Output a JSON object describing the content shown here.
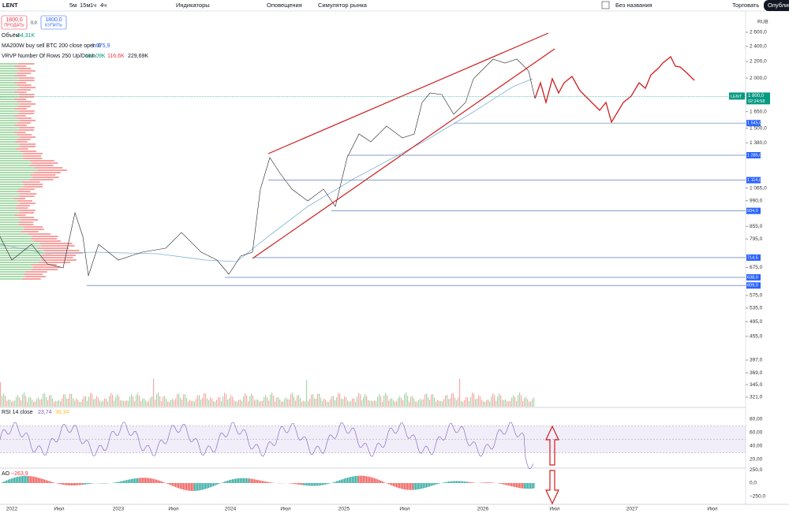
{
  "toolbar": {
    "symbol": "LENT",
    "sell_price": "1800,0",
    "sell_label": "ПРОДАТЬ",
    "spread": "0,0",
    "buy_price": "1800,0",
    "buy_label": "КУПИТЬ",
    "intervals": [
      "5м",
      "15м",
      "1ч",
      "4ч"
    ],
    "indicators": "Индикаторы",
    "alerts": "Оповещения",
    "simulator": "Симулятор рынка",
    "layout_name": "Без названия",
    "trade": "Торговать",
    "publish": "Опубликовать"
  },
  "legend": {
    "volume_name": "Объём",
    "volume_value": "34,31K",
    "ma_name": "MA200W buy sell BTC 200 close open 0",
    "ma_value": "1 975,9",
    "vrvp_name": "VRVP Number Of Rows 250 Up/Down",
    "vrvp_up": "113,09K",
    "vrvp_down": "116,6K",
    "vrvp_total": "229,69K"
  },
  "price_axis": {
    "currency": "RUB",
    "log": true,
    "ylim": [
      321,
      2600
    ],
    "ticks": [
      {
        "value": 2600,
        "label": "2 600,0"
      },
      {
        "value": 2400,
        "label": "2 400,0"
      },
      {
        "value": 2200,
        "label": "2 200,0"
      },
      {
        "value": 2000,
        "label": "2 000,0"
      },
      {
        "value": 1650,
        "label": "1 650,0"
      },
      {
        "value": 1500,
        "label": "1 500,0"
      },
      {
        "value": 1380,
        "label": "1 380,0"
      },
      {
        "value": 1065,
        "label": "1 065,0"
      },
      {
        "value": 990,
        "label": "990,0"
      },
      {
        "value": 855,
        "label": "855,0"
      },
      {
        "value": 795,
        "label": "795,0"
      },
      {
        "value": 675,
        "label": "675,0"
      },
      {
        "value": 575,
        "label": "575,0"
      },
      {
        "value": 535,
        "label": "535,0"
      },
      {
        "value": 495,
        "label": "495,0"
      },
      {
        "value": 455,
        "label": "455,0"
      },
      {
        "value": 397,
        "label": "397,0"
      },
      {
        "value": 369,
        "label": "369,0"
      },
      {
        "value": 345,
        "label": "345,0"
      },
      {
        "value": 321,
        "label": "321,0"
      }
    ],
    "levels": [
      {
        "value": 1545,
        "label": "1 545,0"
      },
      {
        "value": 1285,
        "label": "1 285,0"
      },
      {
        "value": 1114,
        "label": "1 114,0"
      },
      {
        "value": 934,
        "label": "934,0"
      },
      {
        "value": 714.5,
        "label": "714,5"
      },
      {
        "value": 638,
        "label": "638,0"
      },
      {
        "value": 609,
        "label": "609,0"
      }
    ],
    "current": {
      "symbol": "LENT",
      "value": 1800,
      "label": "1 800,0",
      "timer": "02:24:58"
    }
  },
  "rsi": {
    "name": "RSI 14 close",
    "value": "23,74",
    "ma_value": "36,34",
    "ylim": [
      0,
      100
    ],
    "ticks": [
      {
        "value": 80,
        "label": "80,00"
      },
      {
        "value": 60,
        "label": "60,00"
      },
      {
        "value": 40,
        "label": "40,00"
      },
      {
        "value": 20,
        "label": "20,00"
      }
    ]
  },
  "ao": {
    "name": "AO",
    "value": "−263,9",
    "ylim": [
      -300,
      300
    ],
    "ticks": [
      {
        "value": 250,
        "label": "250,0"
      },
      {
        "value": 0,
        "label": "0,0"
      },
      {
        "value": -250,
        "label": "−250,0"
      }
    ]
  },
  "time_axis": [
    "2022",
    "Июл",
    "2023",
    "Июл",
    "2024",
    "Июл",
    "2025",
    "Июл",
    "2026",
    "Июл",
    "2027",
    "Июл"
  ]
}
